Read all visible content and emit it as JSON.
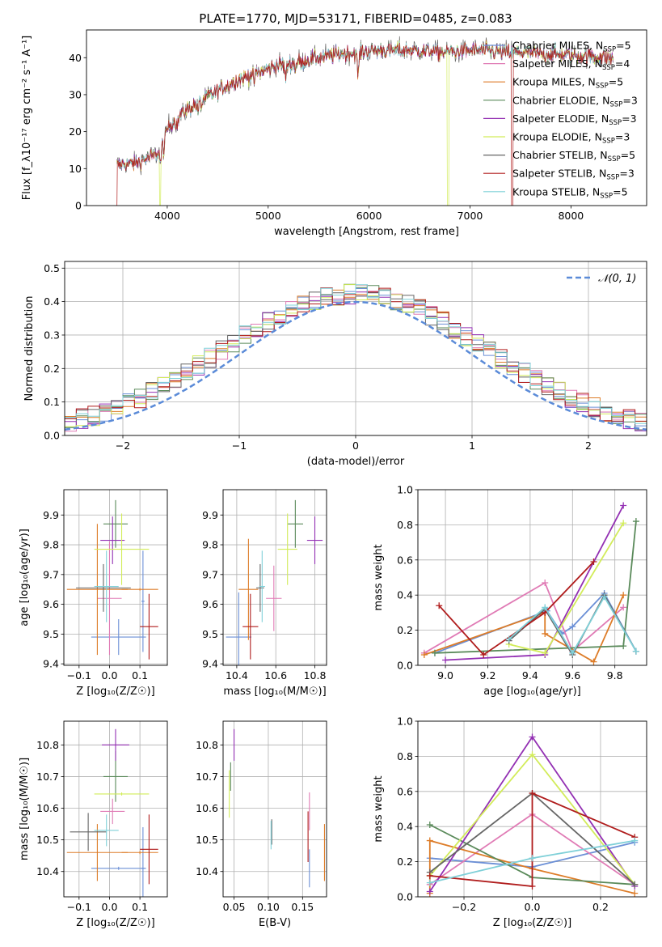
{
  "colors": {
    "Chabrier MILES": "#6b8fd6",
    "Salpeter MILES": "#e07bb5",
    "Kroupa MILES": "#dd7c28",
    "Chabrier ELODIE": "#5a8a5a",
    "Salpeter ELODIE": "#9330b3",
    "Kroupa ELODIE": "#d2ec5a",
    "Chabrier STELIB": "#666666",
    "Salpeter STELIB": "#b01c1c",
    "Kroupa STELIB": "#7fd0d8",
    "gauss": "#5b8bd8"
  },
  "chart_data": [
    {
      "id": "spectrum",
      "type": "line",
      "title": "PLATE=1770, MJD=53171, FIBERID=0485, z=0.083",
      "xlabel": "wavelength [Angstrom, rest frame]",
      "ylabel": "Flux [f_λ10⁻¹⁷ erg cm⁻² s⁻¹ A⁻¹]",
      "xlim": [
        3200,
        8750
      ],
      "ylim": [
        0,
        47.5
      ],
      "xticks": [
        4000,
        5000,
        6000,
        7000,
        8000
      ],
      "yticks": [
        0,
        10,
        20,
        30,
        40
      ],
      "grid": false,
      "legend_position": "top-right",
      "legend": [
        {
          "model": "Chabrier MILES",
          "n": "5"
        },
        {
          "model": "Salpeter MILES",
          "n": "4"
        },
        {
          "model": "Kroupa MILES",
          "n": "5"
        },
        {
          "model": "Chabrier ELODIE",
          "n": "3"
        },
        {
          "model": "Salpeter ELODIE",
          "n": "3"
        },
        {
          "model": "Kroupa ELODIE",
          "n": "3"
        },
        {
          "model": "Chabrier STELIB",
          "n": "5"
        },
        {
          "model": "Salpeter STELIB",
          "n": "3"
        },
        {
          "model": "Kroupa STELIB",
          "n": "5"
        }
      ],
      "continuum": {
        "x": [
          3500,
          3700,
          3900,
          4000,
          4150,
          4300,
          4500,
          4700,
          4900,
          5100,
          5300,
          5500,
          5700,
          5900,
          6100,
          6300,
          6500,
          6700,
          6900,
          7100,
          7300,
          7500,
          7700,
          7900,
          8100,
          8300,
          8400
        ],
        "y": [
          11,
          11.5,
          14,
          21,
          25,
          28,
          31,
          34,
          36,
          38,
          39,
          40,
          41,
          41.5,
          42,
          42,
          42,
          41.5,
          41.8,
          42,
          41.5,
          41.5,
          41,
          40.8,
          40.5,
          40.2,
          40
        ]
      },
      "features": {
        "x": [
          3934,
          3969,
          4101,
          4304,
          4340,
          4861,
          5175,
          5270,
          5335,
          5890,
          6563,
          6565
        ],
        "depth": [
          5,
          4,
          2,
          2.5,
          1.5,
          2,
          4,
          1.5,
          1,
          6,
          3,
          -3
        ]
      },
      "drops": [
        {
          "series": "Salpeter STELIB",
          "start": 3490,
          "end": 3505
        },
        {
          "series": "Kroupa ELODIE",
          "start": 3925,
          "end": 3935
        },
        {
          "series": "Kroupa ELODIE",
          "start": 6775,
          "end": 6790
        },
        {
          "series": "Salpeter STELIB",
          "start": 7410,
          "end": 7425
        }
      ]
    },
    {
      "id": "residuals",
      "type": "area",
      "xlabel": "(data-model)/error",
      "ylabel": "Normed distribution",
      "xlim": [
        -2.5,
        2.5
      ],
      "ylim": [
        0,
        0.52
      ],
      "xticks": [
        -2,
        -1,
        0,
        1,
        2
      ],
      "yticks": [
        0.0,
        0.1,
        0.2,
        0.3,
        0.4,
        0.5
      ],
      "grid": true,
      "legend_position": "top-right",
      "legend": "𝒩(0, 1)",
      "bin_width": 0.1
    },
    {
      "id": "age_vs_Z",
      "type": "scatter",
      "xlabel": "Z [log₁₀(Z/Z☉)]",
      "ylabel": "age  [log₁₀(age/yr)]",
      "xlim": [
        -0.15,
        0.19
      ],
      "ylim": [
        9.395,
        9.985
      ],
      "xticks": [
        -0.1,
        0.0,
        0.1
      ],
      "yticks": [
        9.4,
        9.5,
        9.6,
        9.7,
        9.8,
        9.9
      ],
      "grid": true,
      "points": [
        {
          "series": "Chabrier MILES",
          "x": 0.03,
          "y": 9.49,
          "xerr": 0.09,
          "yerr": 0.06
        },
        {
          "series": "Chabrier MILES",
          "x": 0.11,
          "y": 9.61,
          "xerr": 0.005,
          "yerr": 0.17
        },
        {
          "series": "Salpeter MILES",
          "x": 0.0,
          "y": 9.62,
          "xerr": 0.04,
          "yerr": 0.19
        },
        {
          "series": "Kroupa MILES",
          "x": -0.04,
          "y": 9.65,
          "xerr": 0.1,
          "yerr": 0.22
        },
        {
          "series": "Kroupa MILES",
          "x": 0.1,
          "y": 9.65,
          "xerr": 0.06,
          "yerr": 0.004
        },
        {
          "series": "Chabrier ELODIE",
          "x": 0.02,
          "y": 9.87,
          "xerr": 0.04,
          "yerr": 0.08
        },
        {
          "series": "Salpeter ELODIE",
          "x": 0.01,
          "y": 9.815,
          "xerr": 0.04,
          "yerr": 0.08
        },
        {
          "series": "Kroupa ELODIE",
          "x": 0.04,
          "y": 9.785,
          "xerr": 0.09,
          "yerr": 0.12
        },
        {
          "series": "Chabrier STELIB",
          "x": -0.02,
          "y": 9.655,
          "xerr": 0.09,
          "yerr": 0.08
        },
        {
          "series": "Salpeter STELIB",
          "x": 0.13,
          "y": 9.525,
          "xerr": 0.03,
          "yerr": 0.11
        },
        {
          "series": "Kroupa STELIB",
          "x": -0.01,
          "y": 9.66,
          "xerr": 0.04,
          "yerr": 0.12
        }
      ]
    },
    {
      "id": "age_vs_mass",
      "type": "scatter",
      "xlabel": "mass [log₁₀(M/M☉)]",
      "ylabel": "",
      "xlim": [
        10.33,
        10.86
      ],
      "ylim": [
        9.395,
        9.985
      ],
      "xticks": [
        10.4,
        10.6,
        10.8
      ],
      "yticks": [
        9.4,
        9.5,
        9.6,
        9.7,
        9.8,
        9.9
      ],
      "grid": true,
      "points": [
        {
          "series": "Chabrier MILES",
          "x": 10.41,
          "y": 9.49,
          "xerr": 0.065,
          "yerr": 0.15
        },
        {
          "series": "Salpeter MILES",
          "x": 10.59,
          "y": 9.62,
          "xerr": 0.04,
          "yerr": 0.11
        },
        {
          "series": "Kroupa MILES",
          "x": 10.46,
          "y": 9.65,
          "xerr": 0.05,
          "yerr": 0.17
        },
        {
          "series": "Chabrier ELODIE",
          "x": 10.7,
          "y": 9.87,
          "xerr": 0.04,
          "yerr": 0.08
        },
        {
          "series": "Salpeter ELODIE",
          "x": 10.8,
          "y": 9.815,
          "xerr": 0.04,
          "yerr": 0.08
        },
        {
          "series": "Kroupa ELODIE",
          "x": 10.66,
          "y": 9.785,
          "xerr": 0.05,
          "yerr": 0.12
        },
        {
          "series": "Chabrier STELIB",
          "x": 10.52,
          "y": 9.655,
          "xerr": 0.02,
          "yerr": 0.08
        },
        {
          "series": "Salpeter STELIB",
          "x": 10.47,
          "y": 9.525,
          "xerr": 0.04,
          "yerr": 0.11
        },
        {
          "series": "Kroupa STELIB",
          "x": 10.53,
          "y": 9.66,
          "xerr": 0.015,
          "yerr": 0.12
        }
      ]
    },
    {
      "id": "weight_vs_age",
      "type": "line",
      "xlabel": "age  [log₁₀(age/yr)]",
      "ylabel": "mass weight",
      "xlim": [
        8.87,
        9.95
      ],
      "ylim": [
        0,
        1.0
      ],
      "xticks": [
        9.0,
        9.2,
        9.4,
        9.6,
        9.8
      ],
      "yticks": [
        0.0,
        0.2,
        0.4,
        0.6,
        0.8,
        1.0
      ],
      "grid": true,
      "series": [
        {
          "name": "Chabrier MILES",
          "x": [
            8.95,
            9.48,
            9.55,
            9.6,
            9.75,
            9.9
          ],
          "y": [
            0.07,
            0.31,
            0.18,
            0.22,
            0.41,
            0.08
          ]
        },
        {
          "name": "Salpeter MILES",
          "x": [
            8.9,
            9.47,
            9.6,
            9.84
          ],
          "y": [
            0.07,
            0.47,
            0.08,
            0.33
          ]
        },
        {
          "name": "Kroupa MILES",
          "x": [
            8.9,
            9.47,
            9.47,
            9.7,
            9.84
          ],
          "y": [
            0.06,
            0.3,
            0.18,
            0.02,
            0.4
          ]
        },
        {
          "name": "Chabrier ELODIE",
          "x": [
            8.95,
            9.84,
            9.9
          ],
          "y": [
            0.07,
            0.11,
            0.82
          ]
        },
        {
          "name": "Salpeter ELODIE",
          "x": [
            9.0,
            9.47,
            9.84
          ],
          "y": [
            0.03,
            0.06,
            0.91
          ]
        },
        {
          "name": "Kroupa ELODIE",
          "x": [
            9.3,
            9.47,
            9.84
          ],
          "y": [
            0.12,
            0.07,
            0.81
          ]
        },
        {
          "name": "Chabrier STELIB",
          "x": [
            9.3,
            9.47,
            9.6,
            9.75,
            9.9
          ],
          "y": [
            0.14,
            0.32,
            0.06,
            0.4,
            0.08
          ]
        },
        {
          "name": "Salpeter STELIB",
          "x": [
            8.97,
            9.18,
            9.47,
            9.7
          ],
          "y": [
            0.34,
            0.06,
            0.3,
            0.59
          ]
        },
        {
          "name": "Kroupa STELIB",
          "x": [
            9.3,
            9.47,
            9.6,
            9.75,
            9.9
          ],
          "y": [
            0.15,
            0.33,
            0.07,
            0.39,
            0.08
          ]
        }
      ]
    },
    {
      "id": "mass_vs_Z",
      "type": "scatter",
      "xlabel": "Z [log₁₀(Z/Z☉)]",
      "ylabel": "mass [log₁₀(M/M☉)]",
      "xlim": [
        -0.15,
        0.19
      ],
      "ylim": [
        10.32,
        10.875
      ],
      "xticks": [
        -0.1,
        0.0,
        0.1
      ],
      "yticks": [
        10.4,
        10.5,
        10.6,
        10.7,
        10.8
      ],
      "grid": true,
      "points": [
        {
          "series": "Chabrier MILES",
          "x": 0.03,
          "y": 10.41,
          "xerr": 0.09,
          "yerr": 0.005
        },
        {
          "series": "Chabrier MILES",
          "x": 0.11,
          "y": 10.41,
          "xerr": 0.005,
          "yerr": 0.13
        },
        {
          "series": "Salpeter MILES",
          "x": 0.01,
          "y": 10.59,
          "xerr": 0.04,
          "yerr": 0.04
        },
        {
          "series": "Kroupa MILES",
          "x": -0.04,
          "y": 10.46,
          "xerr": 0.1,
          "yerr": 0.09
        },
        {
          "series": "Kroupa MILES",
          "x": 0.1,
          "y": 10.46,
          "xerr": 0.06,
          "yerr": 0.005
        },
        {
          "series": "Chabrier ELODIE",
          "x": 0.02,
          "y": 10.7,
          "xerr": 0.04,
          "yerr": 0.08
        },
        {
          "series": "Salpeter ELODIE",
          "x": 0.02,
          "y": 10.8,
          "xerr": 0.045,
          "yerr": 0.05
        },
        {
          "series": "Kroupa ELODIE",
          "x": 0.04,
          "y": 10.645,
          "xerr": 0.09,
          "yerr": 0.005
        },
        {
          "series": "Chabrier STELIB",
          "x": -0.07,
          "y": 10.525,
          "xerr": 0.06,
          "yerr": 0.06
        },
        {
          "series": "Salpeter STELIB",
          "x": 0.13,
          "y": 10.47,
          "xerr": 0.03,
          "yerr": 0.11
        },
        {
          "series": "Kroupa STELIB",
          "x": -0.01,
          "y": 10.53,
          "xerr": 0.04,
          "yerr": 0.05
        }
      ]
    },
    {
      "id": "mass_vs_ebv",
      "type": "scatter",
      "xlabel": "E(B-V)",
      "ylabel": "",
      "xlim": [
        0.034,
        0.185
      ],
      "ylim": [
        10.32,
        10.875
      ],
      "xticks": [
        0.05,
        0.1,
        0.15
      ],
      "yticks": [
        10.4,
        10.5,
        10.6,
        10.7,
        10.8
      ],
      "grid": true,
      "points": [
        {
          "series": "Chabrier MILES",
          "x": 0.16,
          "y": 10.41,
          "yerr": 0.06
        },
        {
          "series": "Salpeter MILES",
          "x": 0.16,
          "y": 10.59,
          "yerr": 0.06
        },
        {
          "series": "Kroupa MILES",
          "x": 0.182,
          "y": 10.46,
          "yerr": 0.09
        },
        {
          "series": "Chabrier ELODIE",
          "x": 0.045,
          "y": 10.7,
          "yerr": 0.045
        },
        {
          "series": "Salpeter ELODIE",
          "x": 0.05,
          "y": 10.8,
          "yerr": 0.05
        },
        {
          "series": "Kroupa ELODIE",
          "x": 0.043,
          "y": 10.645,
          "yerr": 0.075
        },
        {
          "series": "Chabrier STELIB",
          "x": 0.105,
          "y": 10.525,
          "yerr": 0.04
        },
        {
          "series": "Salpeter STELIB",
          "x": 0.158,
          "y": 10.51,
          "yerr": 0.08
        },
        {
          "series": "Kroupa STELIB",
          "x": 0.104,
          "y": 10.515,
          "yerr": 0.045
        }
      ]
    },
    {
      "id": "weight_vs_Z",
      "type": "line",
      "xlabel": "Z [log₁₀(Z/Z☉)]",
      "ylabel": "mass weight",
      "xlim": [
        -0.335,
        0.335
      ],
      "ylim": [
        0,
        1.0
      ],
      "xticks": [
        -0.2,
        0.0,
        0.2
      ],
      "yticks": [
        0.0,
        0.2,
        0.4,
        0.6,
        0.8,
        1.0
      ],
      "grid": true,
      "series": [
        {
          "name": "Chabrier MILES",
          "x": [
            -0.3,
            0.0,
            0.3
          ],
          "y": [
            0.22,
            0.17,
            0.31
          ]
        },
        {
          "name": "Salpeter MILES",
          "x": [
            -0.3,
            0.0,
            0.3
          ],
          "y": [
            0.07,
            0.47,
            0.07
          ]
        },
        {
          "name": "Kroupa MILES",
          "x": [
            -0.3,
            -0.3,
            0.0,
            0.3
          ],
          "y": [
            0.02,
            0.32,
            0.16,
            0.02
          ]
        },
        {
          "name": "Chabrier ELODIE",
          "x": [
            -0.3,
            0.0,
            0.3
          ],
          "y": [
            0.41,
            0.11,
            0.07
          ]
        },
        {
          "name": "Salpeter ELODIE",
          "x": [
            -0.3,
            0.0,
            0.3
          ],
          "y": [
            0.03,
            0.91,
            0.06
          ]
        },
        {
          "name": "Kroupa ELODIE",
          "x": [
            -0.3,
            0.0,
            0.3
          ],
          "y": [
            0.12,
            0.81,
            0.07
          ]
        },
        {
          "name": "Chabrier STELIB",
          "x": [
            -0.3,
            0.0,
            0.3
          ],
          "y": [
            0.14,
            0.59,
            0.07
          ]
        },
        {
          "name": "Salpeter STELIB",
          "x": [
            -0.3,
            0.0,
            0.0,
            0.3
          ],
          "y": [
            0.12,
            0.06,
            0.59,
            0.34
          ]
        },
        {
          "name": "Kroupa STELIB",
          "x": [
            -0.3,
            0.0,
            0.3
          ],
          "y": [
            0.08,
            0.22,
            0.32
          ]
        }
      ]
    }
  ]
}
